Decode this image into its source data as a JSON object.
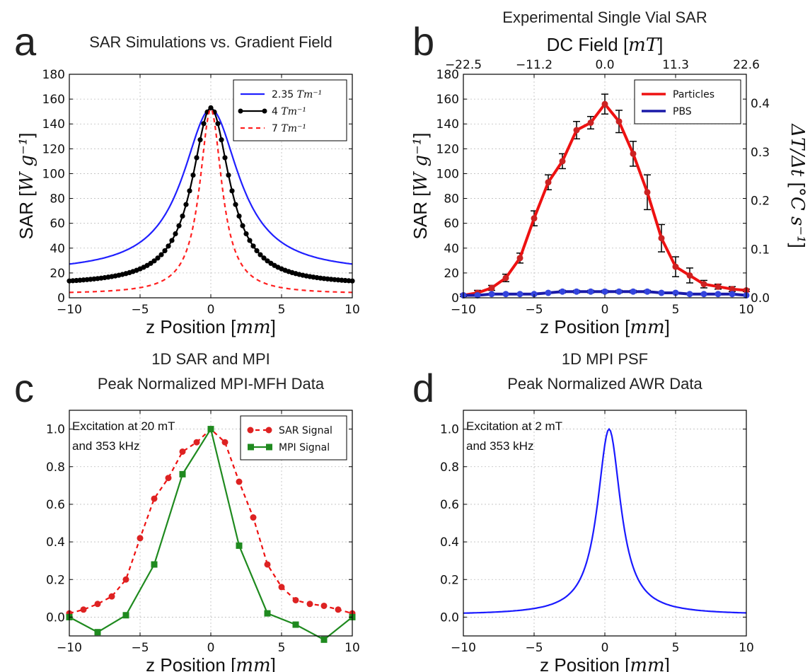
{
  "chart_data": [
    {
      "id": "a",
      "panel_letter": "a",
      "type": "line",
      "title_lines": [
        "SAR Simulations vs. Gradient Field"
      ],
      "xlabel": "z Position",
      "xlabel_unit": "mm",
      "ylabel": "SAR",
      "ylabel_unit": "W g⁻¹",
      "xlim": [
        -10,
        10
      ],
      "ylim": [
        0,
        180
      ],
      "xticks": [
        -10,
        -5,
        0,
        5,
        10
      ],
      "yticks": [
        0,
        20,
        40,
        60,
        80,
        100,
        120,
        140,
        160,
        180
      ],
      "grid": true,
      "legend_position": "top-right",
      "series": [
        {
          "name": "2.35 Tm⁻¹",
          "color": "#2020ff",
          "style": "solid",
          "marker": "none",
          "model": {
            "peak": 152,
            "x0": 0,
            "gamma": 2.4,
            "floor": 20
          }
        },
        {
          "name": "4 Tm⁻¹",
          "color": "#000000",
          "style": "solid",
          "marker": "circle",
          "model": {
            "peak": 153,
            "x0": 0,
            "gamma": 1.6,
            "floor": 10
          }
        },
        {
          "name": "7 Tm⁻¹",
          "color": "#ff2020",
          "style": "dashed",
          "marker": "none",
          "model": {
            "peak": 152,
            "x0": 0,
            "gamma": 0.95,
            "floor": 3
          }
        }
      ]
    },
    {
      "id": "b",
      "panel_letter": "b",
      "type": "line",
      "title_lines": [
        "Experimental Single Vial SAR"
      ],
      "top_axis_label": "DC Field",
      "top_axis_unit": "mT",
      "top_ticks": [
        {
          "pos": -10,
          "label": "−22.5"
        },
        {
          "pos": -5,
          "label": "−11.2"
        },
        {
          "pos": 0,
          "label": "0.0"
        },
        {
          "pos": 5,
          "label": "11.3"
        },
        {
          "pos": 10,
          "label": "22.6"
        }
      ],
      "xlabel": "z Position",
      "xlabel_unit": "mm",
      "ylabel": "SAR",
      "ylabel_unit": "W g⁻¹",
      "y2label": "ΔT/Δt",
      "y2label_unit": "°C s⁻¹",
      "xlim": [
        -10,
        10
      ],
      "ylim": [
        0,
        180
      ],
      "y2lim": [
        0,
        0.46
      ],
      "xticks": [
        -10,
        -5,
        0,
        5,
        10
      ],
      "yticks": [
        0,
        20,
        40,
        60,
        80,
        100,
        120,
        140,
        160,
        180
      ],
      "y2ticks": [
        "0.0",
        "0.1",
        "0.2",
        "0.3",
        "0.4"
      ],
      "grid": true,
      "legend_position": "top-right",
      "series": [
        {
          "name": "Particles",
          "color": "#ee1111",
          "marker": "circle",
          "marker_color": "#cc2222",
          "x": [
            -10,
            -9,
            -8,
            -7,
            -6,
            -5,
            -4,
            -3,
            -2,
            -1,
            0,
            1,
            2,
            3,
            4,
            5,
            6,
            7,
            8,
            9,
            10
          ],
          "y": [
            2,
            4,
            8,
            16,
            32,
            64,
            93,
            110,
            135,
            141,
            156,
            142,
            116,
            85,
            48,
            25,
            18,
            11,
            9,
            7,
            6
          ],
          "err": [
            1,
            2,
            2,
            3,
            4,
            6,
            6,
            6,
            7,
            5,
            8,
            9,
            10,
            14,
            11,
            8,
            6,
            3,
            2,
            2,
            1
          ]
        },
        {
          "name": "PBS",
          "color": "#1a1aa8",
          "marker": "circle",
          "marker_color": "#3344dd",
          "x": [
            -10,
            -9,
            -8,
            -7,
            -6,
            -5,
            -4,
            -3,
            -2,
            -1,
            0,
            1,
            2,
            3,
            4,
            5,
            6,
            7,
            8,
            9,
            10
          ],
          "y": [
            2,
            2,
            3,
            3,
            3,
            3,
            4,
            5,
            5,
            5,
            5,
            5,
            5,
            5,
            4,
            4,
            3,
            3,
            3,
            3,
            2
          ],
          "err": [
            0,
            0,
            0,
            0,
            0,
            0,
            0,
            1,
            1,
            1,
            1,
            1,
            1,
            1,
            0,
            0,
            0,
            0,
            0,
            0,
            0
          ]
        }
      ]
    },
    {
      "id": "c",
      "panel_letter": "c",
      "type": "line",
      "title_lines": [
        "1D SAR and MPI",
        "Peak Normalized MPI-MFH Data"
      ],
      "annotation_lines": [
        "Excitation at 20 mT",
        "and 353 kHz"
      ],
      "xlabel": "z Position",
      "xlabel_unit": "mm",
      "xlim": [
        -10,
        10
      ],
      "ylim": [
        -0.1,
        1.1
      ],
      "xticks": [
        -10,
        -5,
        0,
        5,
        10
      ],
      "yticks": [
        "0.0",
        "0.2",
        "0.4",
        "0.6",
        "0.8",
        "1.0"
      ],
      "grid": true,
      "legend_position": "top-right",
      "series": [
        {
          "name": "SAR Signal",
          "color": "#ee1111",
          "style": "dashed",
          "marker": "circle",
          "marker_color": "#dd2222",
          "x": [
            -10,
            -9,
            -8,
            -7,
            -6,
            -5,
            -4,
            -3,
            -2,
            -1,
            0,
            1,
            2,
            3,
            4,
            5,
            6,
            7,
            8,
            9,
            10
          ],
          "y": [
            0.02,
            0.04,
            0.07,
            0.11,
            0.2,
            0.42,
            0.63,
            0.74,
            0.88,
            0.93,
            1.0,
            0.93,
            0.72,
            0.53,
            0.28,
            0.16,
            0.09,
            0.07,
            0.06,
            0.04,
            0.02
          ]
        },
        {
          "name": "MPI Signal",
          "color": "#1f8a1f",
          "style": "solid",
          "marker": "square",
          "marker_color": "#1f8a1f",
          "x": [
            -10,
            -8,
            -6,
            -4,
            -2,
            0,
            2,
            4,
            6,
            8,
            10
          ],
          "y": [
            0.0,
            -0.08,
            0.01,
            0.28,
            0.76,
            1.0,
            0.38,
            0.02,
            -0.04,
            -0.12,
            0.0
          ]
        }
      ]
    },
    {
      "id": "d",
      "panel_letter": "d",
      "type": "line",
      "title_lines": [
        "1D MPI PSF",
        "Peak Normalized AWR Data"
      ],
      "annotation_lines": [
        "Excitation at 2 mT",
        "and 353 kHz"
      ],
      "xlabel": "z Position",
      "xlabel_unit": "mm",
      "xlim": [
        -10,
        10
      ],
      "ylim": [
        -0.1,
        1.1
      ],
      "xticks": [
        -10,
        -5,
        0,
        5,
        10
      ],
      "yticks": [
        "0.0",
        "0.2",
        "0.4",
        "0.6",
        "0.8",
        "1.0"
      ],
      "grid": true,
      "series": [
        {
          "color": "#1a1aff",
          "style": "solid",
          "marker": "none",
          "model": {
            "peak": 1.0,
            "x0": 0.3,
            "gamma": 1.0,
            "floor": 0.012
          }
        }
      ]
    }
  ]
}
